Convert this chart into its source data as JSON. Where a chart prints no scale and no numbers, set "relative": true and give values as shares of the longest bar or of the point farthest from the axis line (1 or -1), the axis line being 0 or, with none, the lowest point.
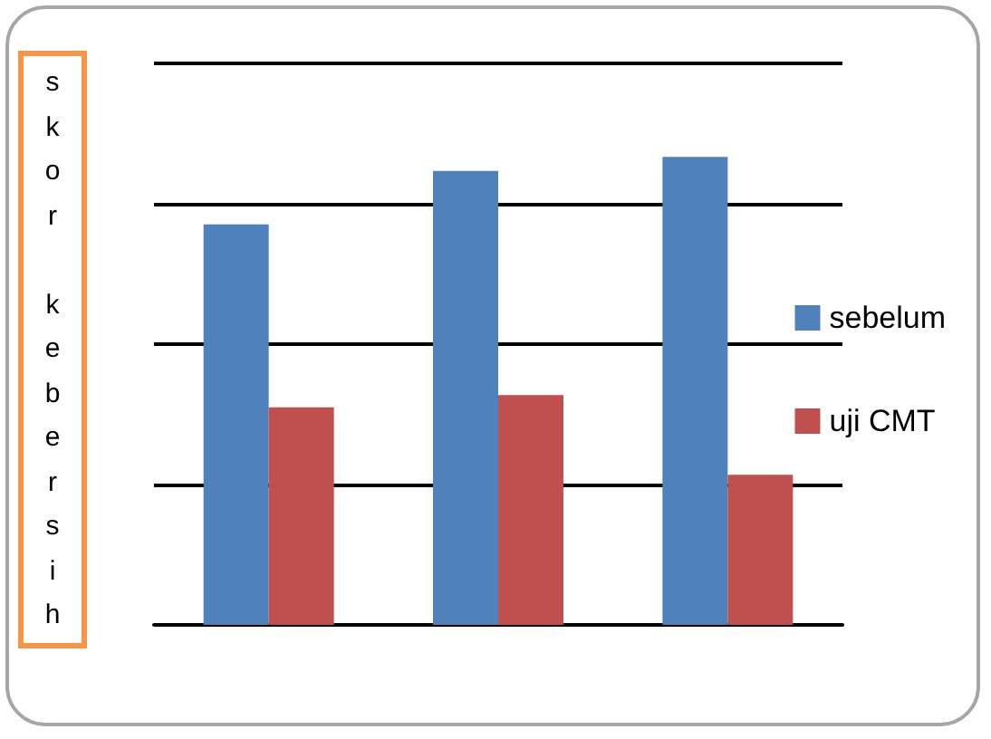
{
  "chart_data": {
    "type": "bar",
    "ylabel": "skor kebersih",
    "relative": true,
    "categories": [
      null,
      null,
      null
    ],
    "series": [
      {
        "name": "sebelum",
        "color": "#4f81bd",
        "values": [
          0.856,
          0.97,
          1
        ]
      },
      {
        "name": "uji CMT",
        "color": "#c0504d",
        "values": [
          0.465,
          0.491,
          0.321
        ]
      }
    ],
    "grid": "y",
    "legend": "right"
  }
}
